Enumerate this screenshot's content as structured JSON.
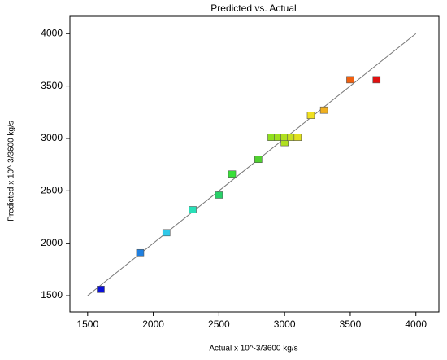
{
  "chart_data": {
    "type": "scatter",
    "title": "Predicted vs. Actual",
    "x_label": "Actual x 10^-3/3600 kg/s",
    "y_label": "Predicted x 10^-3/3600 kg/s",
    "x": [
      1600,
      1900,
      2100,
      2300,
      2500,
      2600,
      2800,
      2900,
      2950,
      3000,
      3000,
      3050,
      3100,
      3200,
      3300,
      3500,
      3700
    ],
    "y": [
      1560,
      1910,
      2100,
      2320,
      2460,
      2660,
      2800,
      3010,
      3010,
      2960,
      3010,
      3010,
      3010,
      3220,
      3270,
      3560,
      3560
    ],
    "colors": [
      "#0a10d8",
      "#2080e0",
      "#30c8e8",
      "#28e0b8",
      "#28d068",
      "#38e038",
      "#50d030",
      "#90e020",
      "#a0e020",
      "#b0e020",
      "#b0e020",
      "#c8e020",
      "#e0e020",
      "#f0e020",
      "#f0b020",
      "#f06010",
      "#e01010"
    ],
    "reference_line": {
      "x": [
        1500,
        4000
      ],
      "y": [
        1500,
        4000
      ]
    },
    "xlim": [
      1365,
      4175
    ],
    "ylim": [
      1345,
      4165
    ],
    "xticks": [
      1500,
      2000,
      2500,
      3000,
      3500,
      4000
    ],
    "yticks": [
      1500,
      2000,
      2500,
      3000,
      3500,
      4000
    ]
  }
}
